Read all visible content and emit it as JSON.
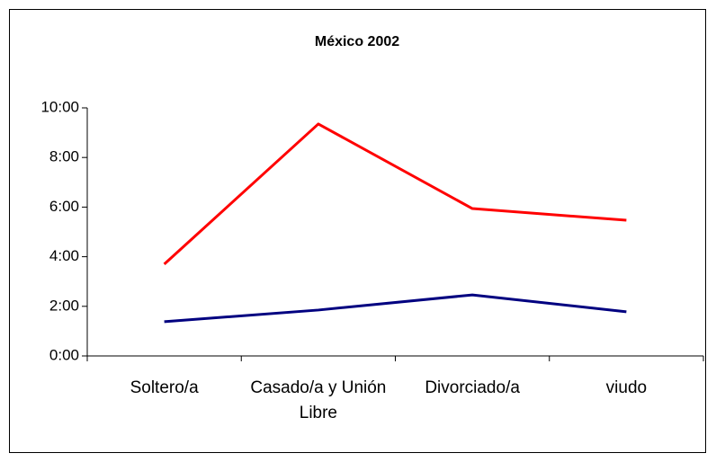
{
  "chart_data": {
    "type": "line",
    "title": "México 2002",
    "categories": [
      "Soltero/a",
      "Casado/a y Unión Libre",
      "Divorciado/a",
      "viudo"
    ],
    "series": [
      {
        "color": "#ff0000",
        "values": [
          3.7,
          9.35,
          5.94,
          5.47
        ]
      },
      {
        "color": "#000080",
        "values": [
          1.38,
          1.85,
          2.46,
          1.78
        ]
      }
    ],
    "ylim": [
      0,
      10
    ],
    "yticks": [
      {
        "value": 0,
        "label": "0:00"
      },
      {
        "value": 2,
        "label": "2:00"
      },
      {
        "value": 4,
        "label": "4:00"
      },
      {
        "value": 6,
        "label": "6:00"
      },
      {
        "value": 8,
        "label": "8:00"
      },
      {
        "value": 10,
        "label": "10:00"
      }
    ],
    "grid": false
  }
}
